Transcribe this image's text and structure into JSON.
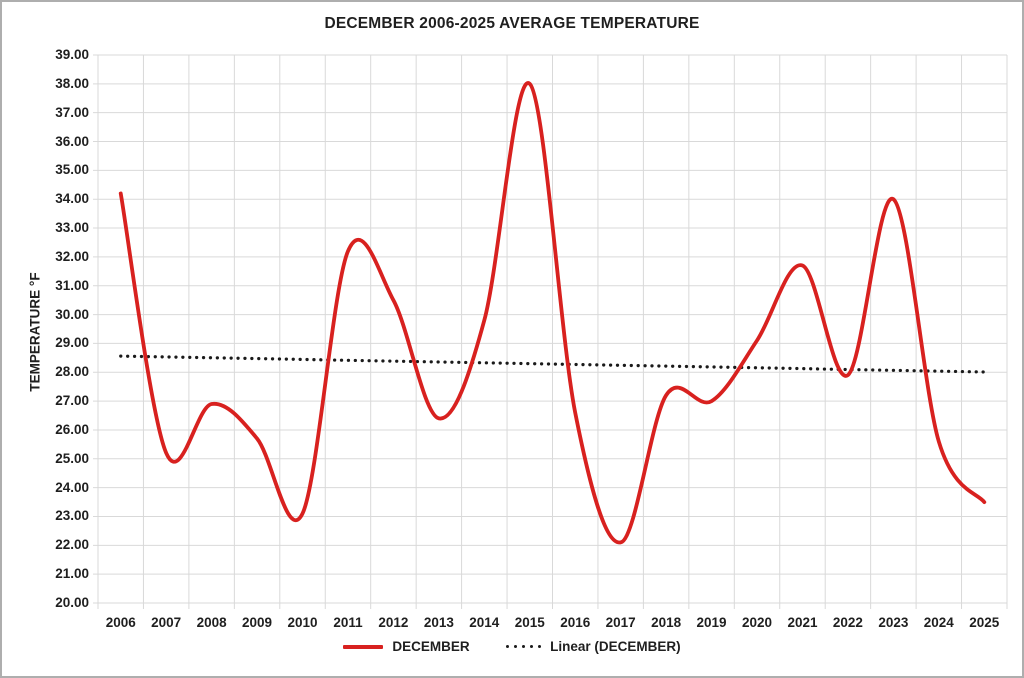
{
  "chart_data": {
    "type": "line",
    "title": "DECEMBER 2006-2025 AVERAGE TEMPERATURE",
    "xlabel": "",
    "ylabel": "TEMPERATURE °F",
    "categories": [
      "2006",
      "2007",
      "2008",
      "2009",
      "2010",
      "2011",
      "2012",
      "2013",
      "2014",
      "2015",
      "2016",
      "2017",
      "2018",
      "2019",
      "2020",
      "2021",
      "2022",
      "2023",
      "2024",
      "2025"
    ],
    "series": [
      {
        "name": "DECEMBER",
        "values": [
          34.2,
          25.2,
          26.9,
          25.7,
          23.1,
          32.2,
          30.5,
          26.4,
          29.8,
          38.0,
          26.6,
          22.1,
          27.2,
          27.0,
          29.1,
          31.7,
          27.9,
          34.0,
          25.6,
          23.5
        ],
        "style": "smooth"
      }
    ],
    "trendline": {
      "name": "Linear (DECEMBER)",
      "start_value": 28.56,
      "end_value": 28.01,
      "style": "dotted"
    },
    "ylim": [
      20,
      39
    ],
    "y_tick_step": 1,
    "y_tick_decimals": 2,
    "grid": true,
    "legend_position": "bottom",
    "colors": {
      "series_line": "#d8211f",
      "trendline": "#1a1a1a",
      "gridline": "#d9d9d9",
      "text": "#1f1f1f",
      "background": "#ffffff",
      "frame": "#aeaeae"
    }
  }
}
